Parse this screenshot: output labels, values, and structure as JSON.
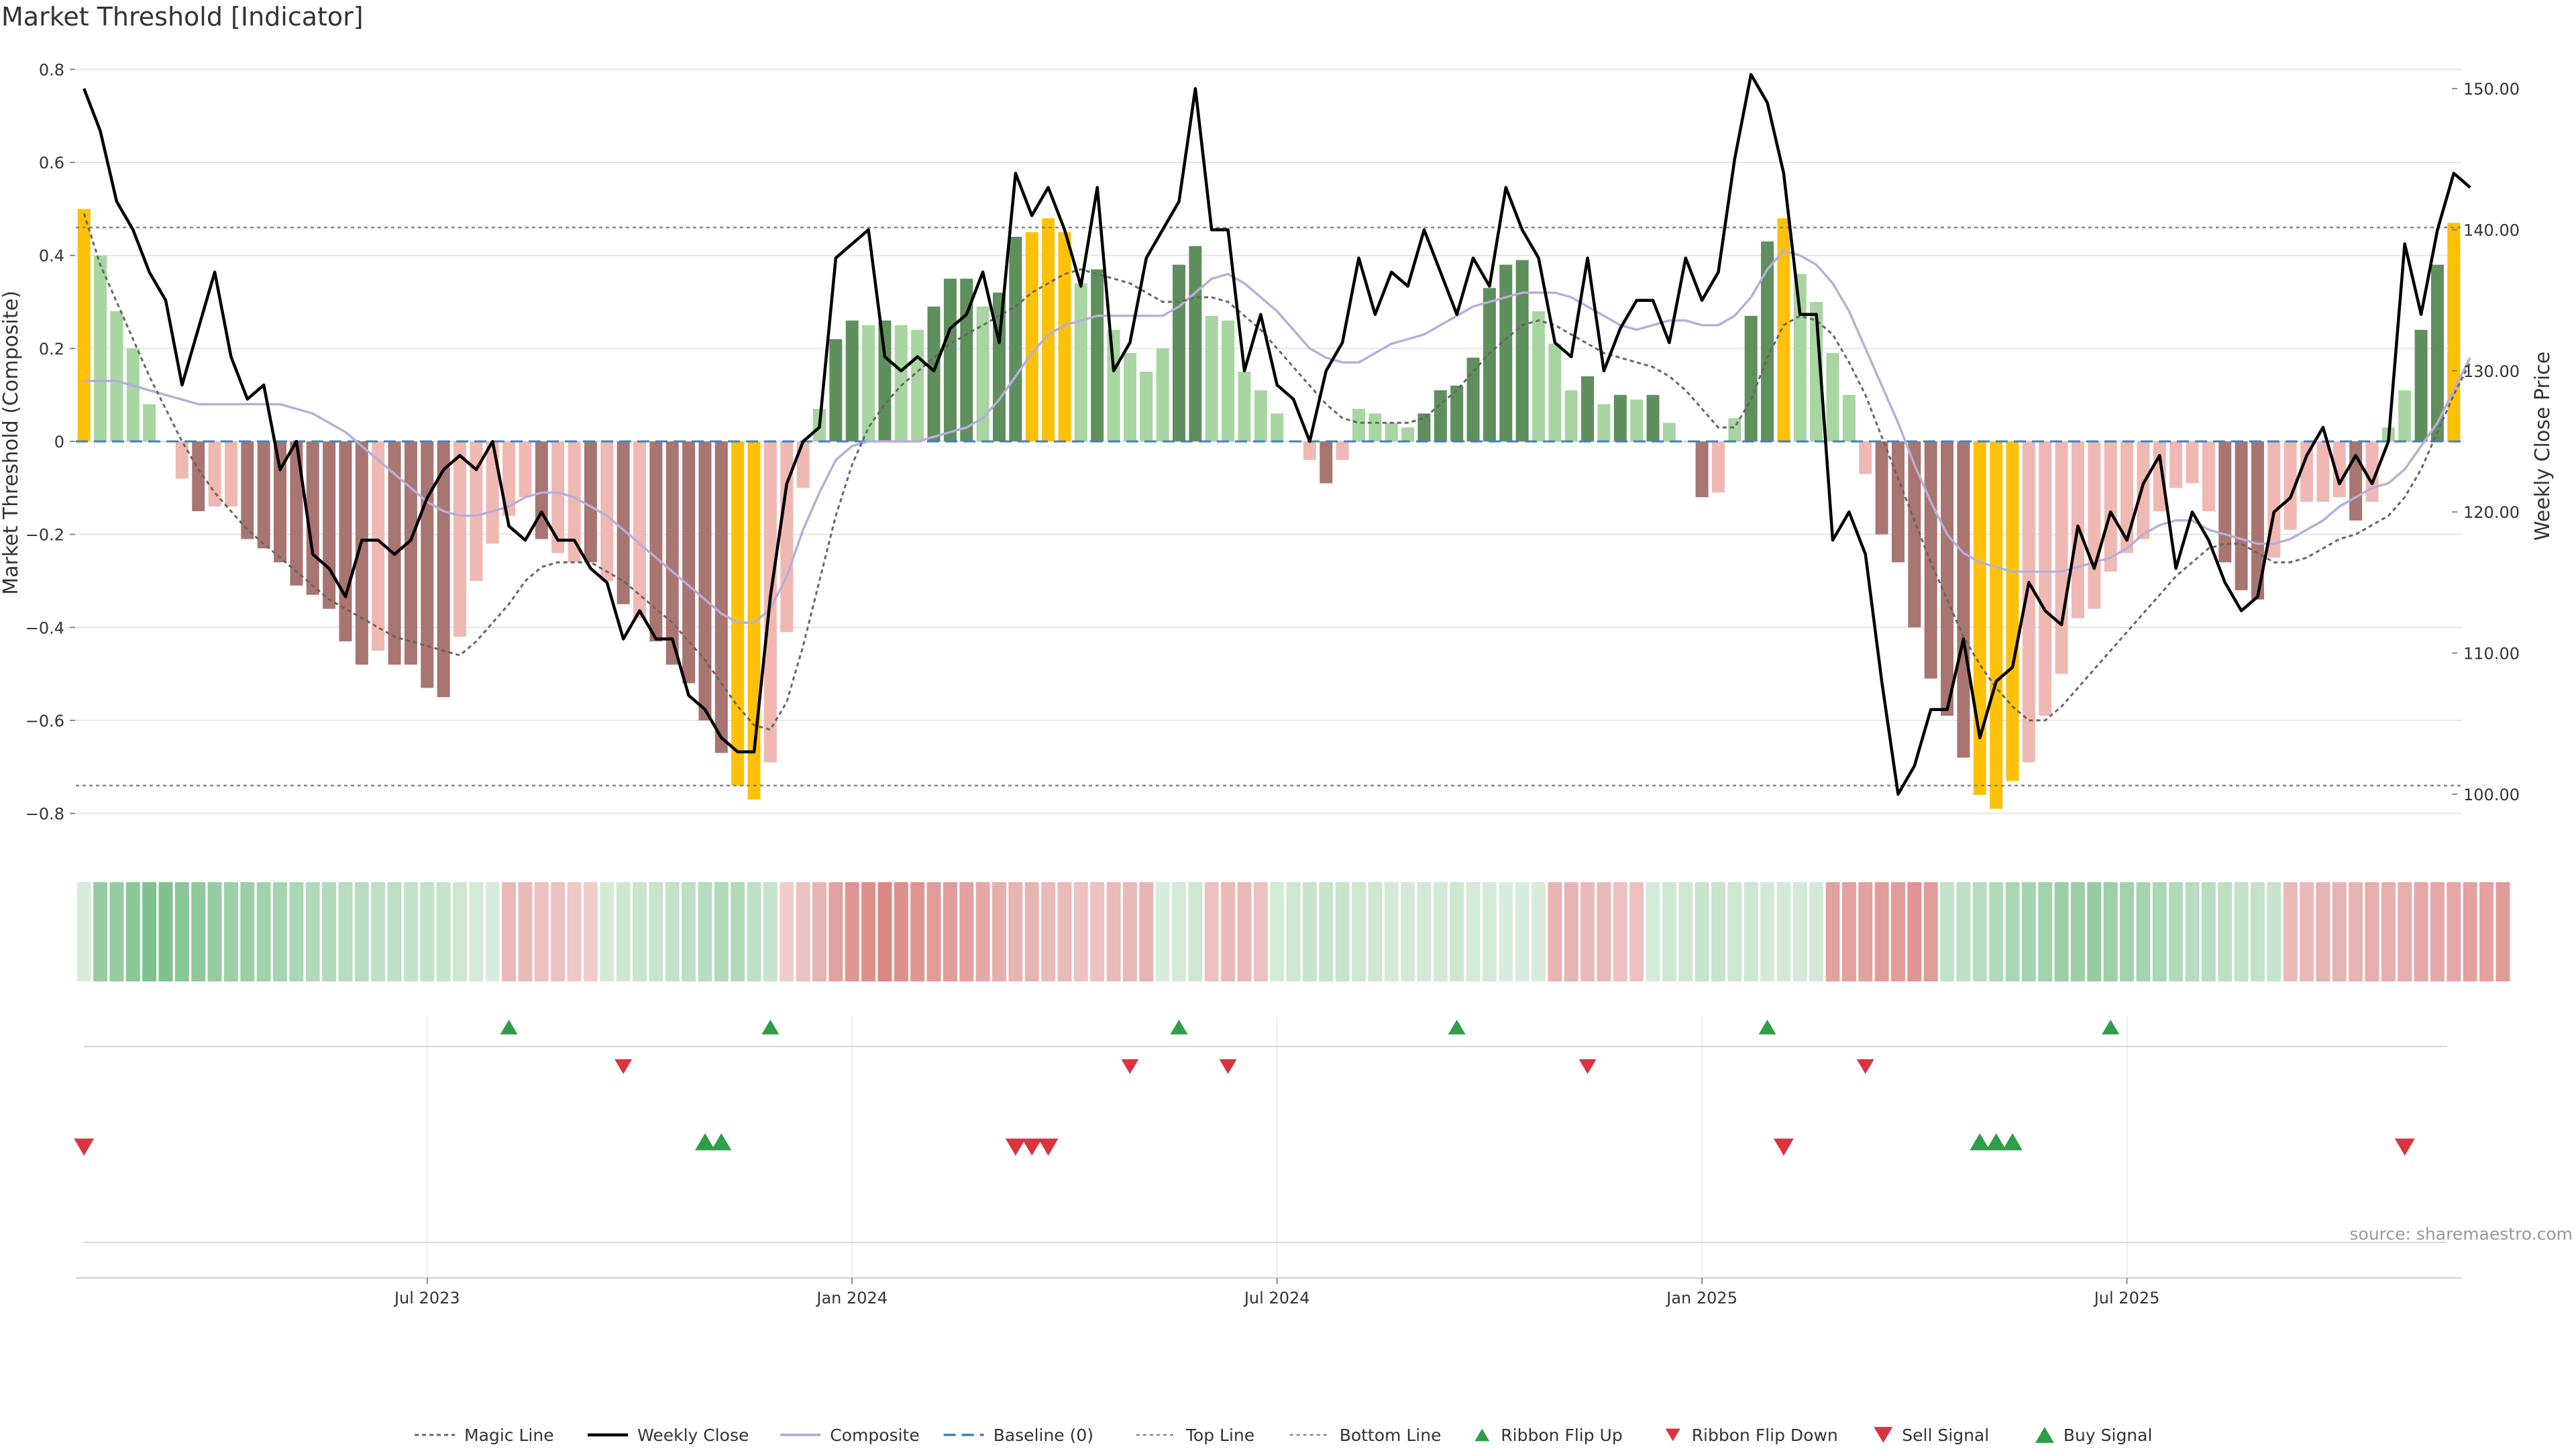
{
  "chart_data": {
    "type": "bar",
    "title": "Market Threshold [Indicator]",
    "ylabel_left": "Market Threshold (Composite)",
    "ylabel_right": "Weekly Close Price",
    "ylim_left": [
      -0.88,
      0.88
    ],
    "ylim_right": [
      96,
      154
    ],
    "yticks_left": [
      0.8,
      0.6,
      0.4,
      0.2,
      0,
      -0.2,
      -0.4,
      -0.6,
      -0.8
    ],
    "ytick_labels_left": [
      "0.8",
      "0.6",
      "0.4",
      "0.2",
      "0",
      "−0.2",
      "−0.4",
      "−0.6",
      "−0.8"
    ],
    "yticks_right": [
      150,
      140,
      130,
      120,
      110,
      100
    ],
    "ytick_labels_right": [
      "150.00",
      "140.00",
      "130.00",
      "120.00",
      "110.00",
      "100.00"
    ],
    "x_ticks": [
      {
        "index": 21,
        "label": "Jul 2023"
      },
      {
        "index": 47,
        "label": "Jan 2024"
      },
      {
        "index": 73,
        "label": "Jul 2024"
      },
      {
        "index": 99,
        "label": "Jan 2025"
      },
      {
        "index": 125,
        "label": "Jul 2025"
      }
    ],
    "top_line": 0.46,
    "bottom_line": -0.74,
    "composite": [
      0.5,
      0.4,
      0.28,
      0.2,
      0.08,
      0,
      -0.08,
      -0.15,
      -0.14,
      -0.14,
      -0.21,
      -0.23,
      -0.26,
      -0.31,
      -0.33,
      -0.36,
      -0.43,
      -0.48,
      -0.45,
      -0.48,
      -0.48,
      -0.53,
      -0.55,
      -0.42,
      -0.3,
      -0.22,
      -0.16,
      -0.12,
      -0.21,
      -0.24,
      -0.26,
      -0.26,
      -0.3,
      -0.35,
      -0.38,
      -0.43,
      -0.48,
      -0.52,
      -0.6,
      -0.67,
      -0.74,
      -0.77,
      -0.69,
      -0.41,
      -0.1,
      0.07,
      0.22,
      0.26,
      0.25,
      0.26,
      0.25,
      0.24,
      0.29,
      0.35,
      0.35,
      0.29,
      0.32,
      0.44,
      0.45,
      0.48,
      0.45,
      0.34,
      0.37,
      0.24,
      0.19,
      0.15,
      0.2,
      0.38,
      0.42,
      0.27,
      0.26,
      0.15,
      0.11,
      0.06,
      0,
      -0.04,
      -0.09,
      -0.04,
      0.07,
      0.06,
      0.04,
      0.03,
      0.06,
      0.11,
      0.12,
      0.18,
      0.33,
      0.38,
      0.39,
      0.28,
      0.21,
      0.11,
      0.14,
      0.08,
      0.1,
      0.09,
      0.1,
      0.04,
      0,
      -0.12,
      -0.11,
      0.05,
      0.27,
      0.43,
      0.48,
      0.36,
      0.3,
      0.19,
      0.1,
      -0.07,
      -0.2,
      -0.26,
      -0.4,
      -0.51,
      -0.59,
      -0.68,
      -0.76,
      -0.79,
      -0.73,
      -0.69,
      -0.59,
      -0.5,
      -0.38,
      -0.36,
      -0.28,
      -0.24,
      -0.21,
      -0.15,
      -0.1,
      -0.09,
      -0.15,
      -0.26,
      -0.32,
      -0.34,
      -0.25,
      -0.19,
      -0.13,
      -0.13,
      -0.12,
      -0.17,
      -0.13,
      0.03,
      0.11,
      0.24,
      0.38,
      0.47
    ],
    "bar_colors": [
      "#ffc107",
      "#a8d5a2",
      "#a8d5a2",
      "#a8d5a2",
      "#a8d5a2",
      "#a8d5a2",
      "#f0b8b2",
      "#a97570",
      "#f0b8b2",
      "#f0b8b2",
      "#a97570",
      "#a97570",
      "#a97570",
      "#a97570",
      "#a97570",
      "#a97570",
      "#a97570",
      "#a97570",
      "#f0b8b2",
      "#a97570",
      "#a97570",
      "#a97570",
      "#a97570",
      "#f0b8b2",
      "#f0b8b2",
      "#f0b8b2",
      "#f0b8b2",
      "#f0b8b2",
      "#a97570",
      "#f0b8b2",
      "#f0b8b2",
      "#a97570",
      "#f0b8b2",
      "#a97570",
      "#f0b8b2",
      "#a97570",
      "#a97570",
      "#a97570",
      "#a97570",
      "#a97570",
      "#ffc107",
      "#ffc107",
      "#f0b8b2",
      "#f0b8b2",
      "#f0b8b2",
      "#a8d5a2",
      "#5f8f5d",
      "#5f8f5d",
      "#a8d5a2",
      "#5f8f5d",
      "#a8d5a2",
      "#a8d5a2",
      "#5f8f5d",
      "#5f8f5d",
      "#5f8f5d",
      "#a8d5a2",
      "#5f8f5d",
      "#5f8f5d",
      "#ffc107",
      "#ffc107",
      "#ffc107",
      "#a8d5a2",
      "#5f8f5d",
      "#a8d5a2",
      "#a8d5a2",
      "#a8d5a2",
      "#a8d5a2",
      "#5f8f5d",
      "#5f8f5d",
      "#a8d5a2",
      "#a8d5a2",
      "#a8d5a2",
      "#a8d5a2",
      "#a8d5a2",
      "#a8d5a2",
      "#f0b8b2",
      "#a97570",
      "#f0b8b2",
      "#a8d5a2",
      "#a8d5a2",
      "#a8d5a2",
      "#a8d5a2",
      "#5f8f5d",
      "#5f8f5d",
      "#5f8f5d",
      "#5f8f5d",
      "#5f8f5d",
      "#5f8f5d",
      "#5f8f5d",
      "#a8d5a2",
      "#a8d5a2",
      "#a8d5a2",
      "#5f8f5d",
      "#a8d5a2",
      "#5f8f5d",
      "#a8d5a2",
      "#5f8f5d",
      "#a8d5a2",
      "#a8d5a2",
      "#a97570",
      "#f0b8b2",
      "#a8d5a2",
      "#5f8f5d",
      "#5f8f5d",
      "#ffc107",
      "#a8d5a2",
      "#a8d5a2",
      "#a8d5a2",
      "#a8d5a2",
      "#f0b8b2",
      "#a97570",
      "#a97570",
      "#a97570",
      "#a97570",
      "#a97570",
      "#a97570",
      "#ffc107",
      "#ffc107",
      "#ffc107",
      "#f0b8b2",
      "#f0b8b2",
      "#f0b8b2",
      "#f0b8b2",
      "#f0b8b2",
      "#f0b8b2",
      "#f0b8b2",
      "#f0b8b2",
      "#f0b8b2",
      "#f0b8b2",
      "#f0b8b2",
      "#f0b8b2",
      "#a97570",
      "#a97570",
      "#a97570",
      "#f0b8b2",
      "#f0b8b2",
      "#f0b8b2",
      "#f0b8b2",
      "#f0b8b2",
      "#a97570",
      "#f0b8b2",
      "#a8d5a2",
      "#a8d5a2",
      "#5f8f5d",
      "#5f8f5d",
      "#ffc107"
    ],
    "magic_line": [
      0.49,
      0.38,
      0.3,
      0.22,
      0.14,
      0.07,
      0,
      -0.06,
      -0.11,
      -0.15,
      -0.19,
      -0.22,
      -0.25,
      -0.28,
      -0.31,
      -0.34,
      -0.36,
      -0.38,
      -0.4,
      -0.42,
      -0.43,
      -0.44,
      -0.45,
      -0.46,
      -0.43,
      -0.39,
      -0.35,
      -0.3,
      -0.27,
      -0.26,
      -0.26,
      -0.26,
      -0.28,
      -0.3,
      -0.33,
      -0.36,
      -0.39,
      -0.43,
      -0.47,
      -0.52,
      -0.57,
      -0.61,
      -0.62,
      -0.56,
      -0.44,
      -0.3,
      -0.16,
      -0.05,
      0.03,
      0.08,
      0.12,
      0.15,
      0.18,
      0.21,
      0.23,
      0.25,
      0.27,
      0.29,
      0.32,
      0.34,
      0.36,
      0.37,
      0.36,
      0.35,
      0.34,
      0.32,
      0.3,
      0.3,
      0.31,
      0.31,
      0.3,
      0.27,
      0.24,
      0.2,
      0.16,
      0.12,
      0.08,
      0.05,
      0.04,
      0.04,
      0.04,
      0.04,
      0.05,
      0.08,
      0.11,
      0.15,
      0.19,
      0.22,
      0.25,
      0.26,
      0.25,
      0.23,
      0.21,
      0.19,
      0.18,
      0.17,
      0.16,
      0.14,
      0.11,
      0.07,
      0.03,
      0.03,
      0.09,
      0.18,
      0.25,
      0.27,
      0.26,
      0.23,
      0.17,
      0.1,
      0.01,
      -0.08,
      -0.17,
      -0.26,
      -0.34,
      -0.42,
      -0.48,
      -0.53,
      -0.57,
      -0.6,
      -0.6,
      -0.57,
      -0.53,
      -0.49,
      -0.45,
      -0.41,
      -0.37,
      -0.33,
      -0.29,
      -0.26,
      -0.23,
      -0.22,
      -0.22,
      -0.24,
      -0.26,
      -0.26,
      -0.25,
      -0.23,
      -0.21,
      -0.2,
      -0.18,
      -0.16,
      -0.12,
      -0.06,
      0.02,
      0.1,
      0.17
    ],
    "composite_line": [
      0.13,
      0.13,
      0.13,
      0.12,
      0.11,
      0.1,
      0.09,
      0.08,
      0.08,
      0.08,
      0.08,
      0.08,
      0.08,
      0.07,
      0.06,
      0.04,
      0.02,
      -0.01,
      -0.04,
      -0.07,
      -0.1,
      -0.13,
      -0.15,
      -0.16,
      -0.16,
      -0.15,
      -0.14,
      -0.12,
      -0.11,
      -0.11,
      -0.12,
      -0.14,
      -0.16,
      -0.19,
      -0.22,
      -0.25,
      -0.28,
      -0.31,
      -0.34,
      -0.37,
      -0.39,
      -0.39,
      -0.36,
      -0.29,
      -0.19,
      -0.11,
      -0.04,
      -0.01,
      0,
      0,
      0,
      0,
      0.01,
      0.02,
      0.03,
      0.05,
      0.09,
      0.14,
      0.19,
      0.23,
      0.25,
      0.26,
      0.27,
      0.27,
      0.27,
      0.27,
      0.27,
      0.29,
      0.32,
      0.35,
      0.36,
      0.34,
      0.31,
      0.28,
      0.24,
      0.2,
      0.18,
      0.17,
      0.17,
      0.19,
      0.21,
      0.22,
      0.23,
      0.25,
      0.27,
      0.29,
      0.3,
      0.31,
      0.32,
      0.32,
      0.32,
      0.31,
      0.29,
      0.27,
      0.25,
      0.24,
      0.25,
      0.26,
      0.26,
      0.25,
      0.25,
      0.27,
      0.31,
      0.37,
      0.41,
      0.4,
      0.38,
      0.34,
      0.28,
      0.2,
      0.12,
      0.04,
      -0.05,
      -0.13,
      -0.2,
      -0.24,
      -0.26,
      -0.27,
      -0.28,
      -0.28,
      -0.28,
      -0.28,
      -0.27,
      -0.26,
      -0.25,
      -0.23,
      -0.2,
      -0.18,
      -0.17,
      -0.17,
      -0.19,
      -0.2,
      -0.21,
      -0.22,
      -0.22,
      -0.21,
      -0.19,
      -0.17,
      -0.14,
      -0.12,
      -0.1,
      -0.09,
      -0.06,
      -0.01,
      0.04,
      0.11,
      0.18
    ],
    "weekly_close": [
      150,
      147,
      142,
      140,
      137,
      135,
      129,
      133,
      137,
      131,
      128,
      129,
      123,
      125,
      117,
      116,
      114,
      118,
      118,
      117,
      118,
      121,
      123,
      124,
      123,
      125,
      119,
      118,
      120,
      118,
      118,
      116,
      115,
      111,
      113,
      111,
      111,
      107,
      106,
      104,
      103,
      103,
      114,
      122,
      125,
      126,
      138,
      139,
      140,
      131,
      130,
      131,
      130,
      133,
      134,
      137,
      132,
      144,
      141,
      143,
      140,
      136,
      143,
      130,
      132,
      138,
      140,
      142,
      150,
      140,
      140,
      130,
      134,
      129,
      128,
      125,
      130,
      132,
      138,
      134,
      137,
      136,
      140,
      137,
      134,
      138,
      136,
      143,
      140,
      138,
      132,
      131,
      138,
      130,
      133,
      135,
      135,
      132,
      138,
      135,
      137,
      145,
      151,
      149,
      144,
      134,
      134,
      118,
      120,
      117,
      108,
      100,
      102,
      106,
      106,
      111,
      104,
      108,
      109,
      115,
      113,
      112,
      119,
      116,
      120,
      118,
      122,
      124,
      116,
      120,
      118,
      115,
      113,
      114,
      120,
      121,
      124,
      126,
      122,
      124,
      122,
      125,
      139,
      134,
      140,
      144,
      143
    ],
    "ribbon_bands": [
      0.15,
      0.75,
      0.75,
      0.85,
      0.95,
      0.95,
      0.85,
      0.8,
      0.75,
      0.7,
      0.7,
      0.65,
      0.6,
      0.55,
      0.5,
      0.5,
      0.45,
      0.45,
      0.4,
      0.4,
      0.35,
      0.35,
      0.3,
      0.25,
      0.2,
      0.15,
      -0.35,
      -0.35,
      -0.3,
      -0.3,
      -0.25,
      -0.2,
      0.2,
      0.25,
      0.3,
      0.3,
      0.35,
      0.4,
      0.45,
      0.5,
      0.5,
      0.4,
      0.3,
      -0.2,
      -0.3,
      -0.4,
      -0.55,
      -0.65,
      -0.7,
      -0.75,
      -0.7,
      -0.65,
      -0.6,
      -0.6,
      -0.55,
      -0.5,
      -0.45,
      -0.4,
      -0.4,
      -0.35,
      -0.35,
      -0.3,
      -0.3,
      -0.35,
      -0.35,
      -0.4,
      0.15,
      0.2,
      0.25,
      -0.3,
      -0.35,
      -0.35,
      -0.3,
      0.2,
      0.25,
      0.3,
      0.3,
      0.3,
      0.25,
      0.25,
      0.2,
      0.2,
      0.2,
      0.2,
      0.25,
      0.2,
      0.2,
      0.15,
      0.15,
      0.15,
      -0.4,
      -0.4,
      -0.35,
      -0.35,
      -0.3,
      -0.3,
      0.2,
      0.25,
      0.25,
      0.3,
      0.3,
      0.25,
      0.25,
      0.2,
      0.2,
      0.2,
      0.2,
      -0.55,
      -0.55,
      -0.55,
      -0.6,
      -0.6,
      -0.65,
      -0.6,
      0.35,
      0.4,
      0.45,
      0.5,
      0.55,
      0.6,
      0.65,
      0.7,
      0.7,
      0.75,
      0.7,
      0.65,
      0.6,
      0.55,
      0.5,
      0.45,
      0.45,
      0.4,
      0.35,
      0.35,
      0.3,
      -0.35,
      -0.35,
      -0.4,
      -0.4,
      -0.4,
      -0.45,
      -0.45,
      -0.45,
      -0.5,
      -0.5,
      -0.5,
      -0.55,
      -0.55,
      -0.6
    ],
    "ribbon_flip_up": [
      26,
      42,
      67,
      84,
      103,
      124
    ],
    "ribbon_flip_down": [
      33,
      64,
      70,
      92,
      109
    ],
    "sell_signal": [
      0,
      57,
      58,
      59,
      104,
      142
    ],
    "buy_signal": [
      38,
      39,
      116,
      117,
      118
    ],
    "legend": [
      {
        "key": "magic",
        "label": "Magic Line"
      },
      {
        "key": "close",
        "label": "Weekly Close"
      },
      {
        "key": "composite",
        "label": "Composite"
      },
      {
        "key": "baseline",
        "label": "Baseline (0)"
      },
      {
        "key": "top",
        "label": "Top Line"
      },
      {
        "key": "bottom",
        "label": "Bottom Line"
      },
      {
        "key": "flipup",
        "label": "Ribbon Flip Up"
      },
      {
        "key": "flipdown",
        "label": "Ribbon Flip Down"
      },
      {
        "key": "sell",
        "label": "Sell Signal"
      },
      {
        "key": "buy",
        "label": "Buy Signal"
      }
    ],
    "legend_position": "bottom-center",
    "source": "source: sharemaestro.com",
    "colors": {
      "yellow": "#ffc107",
      "up": "#2e9e48",
      "down": "#d9343f",
      "composite_line": "#b7aedc",
      "baseline": "#3b82c4",
      "magic": "#666666",
      "close": "#000000",
      "grid": "#e6e6e6"
    }
  }
}
